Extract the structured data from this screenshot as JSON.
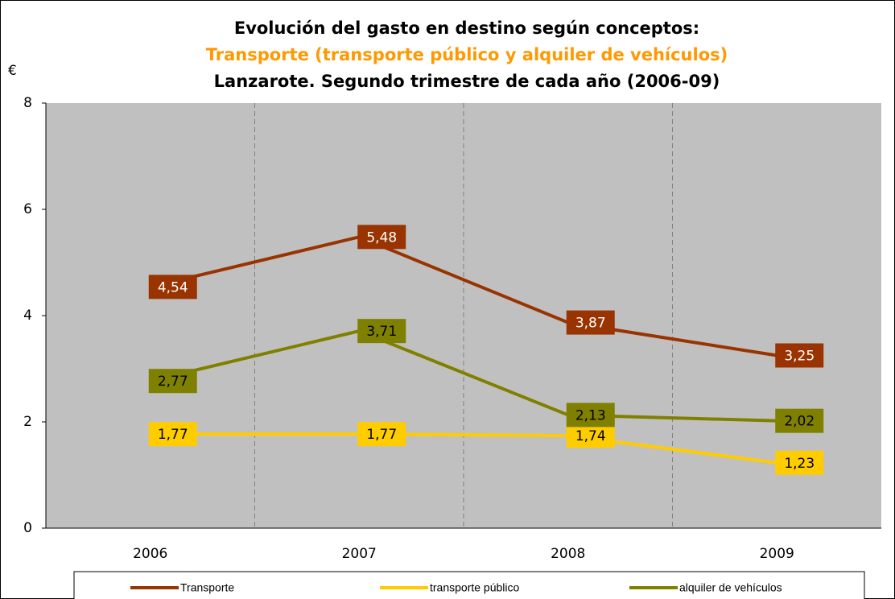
{
  "chart_data": {
    "type": "line",
    "title": "Evolución del gasto en destino según conceptos:",
    "subtitle": "Transporte (transporte público y alquiler de vehículos)",
    "subtitle2": "Lanzarote. Segundo trimestre de cada año (2006-09)",
    "y_label": "€",
    "categories": [
      "2006",
      "2007",
      "2008",
      "2009"
    ],
    "series": [
      {
        "name": "Transporte",
        "color": "#993300",
        "values": [
          4.54,
          5.48,
          3.87,
          3.25
        ],
        "value_labels": [
          "4,54",
          "5,48",
          "3,87",
          "3,25"
        ]
      },
      {
        "name": "transporte público",
        "color": "#ffcc00",
        "values": [
          1.77,
          1.77,
          1.74,
          1.23
        ],
        "value_labels": [
          "1,77",
          "1,77",
          "1,74",
          "1,23"
        ]
      },
      {
        "name": "alquiler de vehículos",
        "color": "#808000",
        "values": [
          2.77,
          3.71,
          2.13,
          2.02
        ],
        "value_labels": [
          "2,77",
          "3,71",
          "2,13",
          "2,02"
        ]
      }
    ],
    "ylim": [
      0,
      8
    ],
    "yticks": [
      0,
      2,
      4,
      6,
      8
    ]
  }
}
